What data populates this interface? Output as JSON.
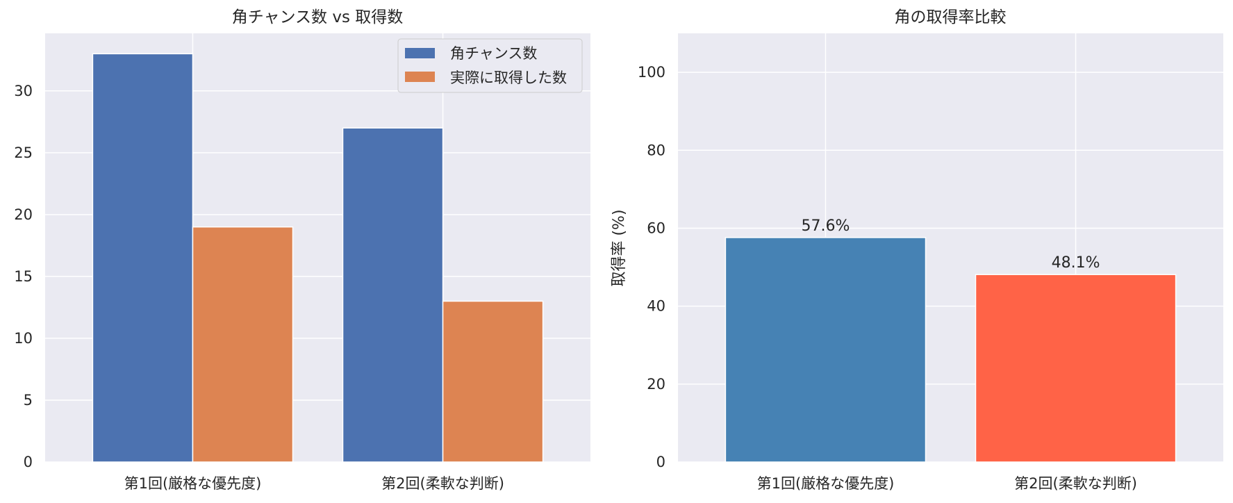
{
  "chart_data": [
    {
      "type": "bar",
      "title": "角チャンス数 vs 取得数",
      "xlabel": "",
      "ylabel": "",
      "categories": [
        "第1回(厳格な優先度)",
        "第2回(柔軟な判断)"
      ],
      "series": [
        {
          "name": "角チャンス数",
          "values": [
            33,
            27
          ],
          "color": "#4c72b0"
        },
        {
          "name": "実際に取得した数",
          "values": [
            19,
            13
          ],
          "color": "#dd8452"
        }
      ],
      "ylim": [
        0,
        34.65
      ],
      "yticks": [
        0,
        5,
        10,
        15,
        20,
        25,
        30
      ],
      "grid": true,
      "legend_position": "top-right"
    },
    {
      "type": "bar",
      "title": "角の取得率比較",
      "xlabel": "",
      "ylabel": "取得率 (%)",
      "categories": [
        "第1回(厳格な優先度)",
        "第2回(柔軟な判断)"
      ],
      "values": [
        57.6,
        48.1
      ],
      "data_labels": [
        "57.6%",
        "48.1%"
      ],
      "colors": [
        "#4682b4",
        "#ff6347"
      ],
      "ylim": [
        0,
        110
      ],
      "yticks": [
        0,
        20,
        40,
        60,
        80,
        100
      ],
      "grid": true
    }
  ]
}
